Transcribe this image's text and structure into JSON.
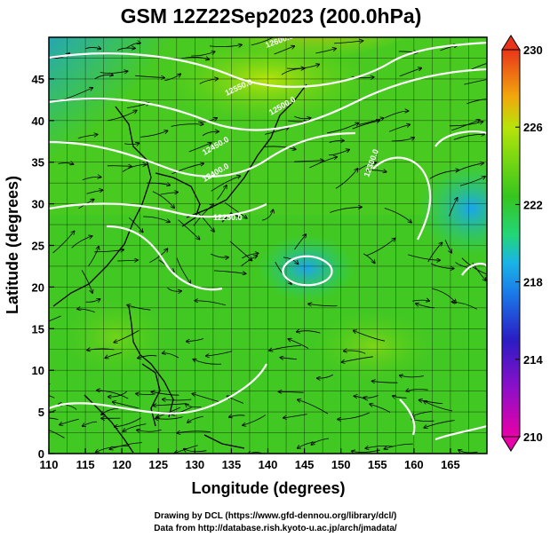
{
  "title": "GSM 12Z22Sep2023 (200.0hPa)",
  "x_axis": {
    "label": "Longitude (degrees)",
    "range": [
      110,
      170
    ],
    "ticks": [
      "110",
      "115",
      "120",
      "125",
      "130",
      "135",
      "140",
      "145",
      "150",
      "155",
      "160",
      "165"
    ]
  },
  "y_axis": {
    "label": "Latitude  (degrees)",
    "range": [
      0,
      50
    ],
    "ticks": [
      "0",
      "5",
      "10",
      "15",
      "20",
      "25",
      "30",
      "35",
      "40",
      "45"
    ]
  },
  "colorbar": {
    "ticks": [
      "210",
      "214",
      "218",
      "222",
      "226",
      "230"
    ],
    "range": [
      210,
      230
    ],
    "colors": [
      "#e800a8",
      "#2a1cc4",
      "#1aa4f0",
      "#22d67a",
      "#36c51f",
      "#9ee00c",
      "#f2a60c",
      "#e8351a"
    ]
  },
  "contour_labels": [
    "12600.0",
    "12550.0",
    "12500.0",
    "12450.0",
    "12400.0",
    "12300.0",
    "12250.0"
  ],
  "credits": {
    "line1": "Drawing by DCL (https://www.gfd-dennou.org/library/dcl/)",
    "line2": "Data from http://database.rish.kyoto-u.ac.jp/arch/jmadata/"
  }
}
